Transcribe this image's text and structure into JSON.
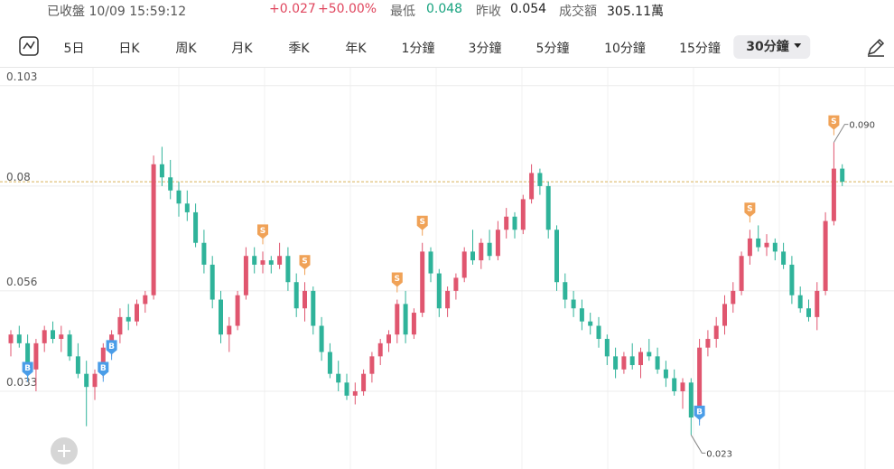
{
  "header": {
    "status": "已收盤 10/09 15:59:12",
    "change": "+0.027",
    "change_pct": "+50.00%",
    "stats": [
      {
        "label": "最低",
        "value": "0.048"
      },
      {
        "label": "昨收",
        "value": "0.054"
      },
      {
        "label": "成交額",
        "value": "305.11萬"
      }
    ]
  },
  "toolbar": {
    "items": [
      "5日",
      "日K",
      "周K",
      "月K",
      "季K",
      "年K",
      "1分鐘",
      "3分鐘",
      "5分鐘",
      "10分鐘",
      "15分鐘",
      "30分鐘"
    ],
    "selected": 11
  },
  "chart_data": {
    "type": "candlestick",
    "up_color": "#e0566f",
    "down_color": "#2fb39a",
    "ylim": [
      0.0152,
      0.1071
    ],
    "yticks": [
      0.033,
      0.056,
      0.08,
      0.103
    ],
    "grid": true,
    "ref_line": 0.081,
    "open": [
      0.044,
      0.046,
      0.044,
      0.038,
      0.044,
      0.047,
      0.045,
      0.046,
      0.041,
      0.037,
      0.034,
      0.037,
      0.043,
      0.046,
      0.05,
      0.049,
      0.053,
      0.055,
      0.085,
      0.082,
      0.079,
      0.076,
      0.074,
      0.067,
      0.062,
      0.054,
      0.046,
      0.048,
      0.055,
      0.064,
      0.062,
      0.063,
      0.062,
      0.064,
      0.058,
      0.052,
      0.056,
      0.048,
      0.042,
      0.037,
      0.035,
      0.032,
      0.033,
      0.037,
      0.041,
      0.044,
      0.046,
      0.053,
      0.046,
      0.051,
      0.065,
      0.06,
      0.052,
      0.056,
      0.059,
      0.065,
      0.063,
      0.067,
      0.064,
      0.07,
      0.073,
      0.07,
      0.077,
      0.083,
      0.08,
      0.07,
      0.058,
      0.054,
      0.052,
      0.049,
      0.048,
      0.045,
      0.041,
      0.038,
      0.041,
      0.039,
      0.042,
      0.041,
      0.038,
      0.036,
      0.033,
      0.035,
      0.027,
      0.043,
      0.045,
      0.048,
      0.053,
      0.056,
      0.064,
      0.068,
      0.066,
      0.067,
      0.065,
      0.062,
      0.055,
      0.052,
      0.05,
      0.056,
      0.072,
      0.084
    ],
    "high": [
      0.047,
      0.048,
      0.046,
      0.045,
      0.048,
      0.049,
      0.048,
      0.047,
      0.044,
      0.04,
      0.038,
      0.044,
      0.047,
      0.052,
      0.053,
      0.054,
      0.056,
      0.087,
      0.089,
      0.086,
      0.081,
      0.079,
      0.076,
      0.07,
      0.064,
      0.056,
      0.05,
      0.056,
      0.066,
      0.066,
      0.065,
      0.064,
      0.067,
      0.066,
      0.06,
      0.058,
      0.057,
      0.05,
      0.044,
      0.04,
      0.037,
      0.035,
      0.038,
      0.042,
      0.045,
      0.047,
      0.054,
      0.056,
      0.052,
      0.067,
      0.066,
      0.061,
      0.057,
      0.06,
      0.066,
      0.07,
      0.068,
      0.07,
      0.072,
      0.075,
      0.074,
      0.078,
      0.085,
      0.084,
      0.081,
      0.071,
      0.06,
      0.056,
      0.054,
      0.051,
      0.05,
      0.046,
      0.043,
      0.042,
      0.044,
      0.043,
      0.045,
      0.043,
      0.04,
      0.038,
      0.036,
      0.036,
      0.045,
      0.047,
      0.05,
      0.055,
      0.058,
      0.065,
      0.07,
      0.071,
      0.069,
      0.068,
      0.067,
      0.064,
      0.057,
      0.054,
      0.058,
      0.074,
      0.09,
      0.085
    ],
    "low": [
      0.041,
      0.043,
      0.036,
      0.033,
      0.042,
      0.044,
      0.042,
      0.04,
      0.036,
      0.025,
      0.031,
      0.036,
      0.041,
      0.044,
      0.047,
      0.048,
      0.051,
      0.054,
      0.08,
      0.077,
      0.073,
      0.072,
      0.066,
      0.06,
      0.052,
      0.044,
      0.042,
      0.047,
      0.054,
      0.06,
      0.06,
      0.06,
      0.061,
      0.056,
      0.05,
      0.049,
      0.046,
      0.04,
      0.036,
      0.033,
      0.031,
      0.03,
      0.032,
      0.035,
      0.039,
      0.042,
      0.044,
      0.044,
      0.045,
      0.05,
      0.058,
      0.05,
      0.05,
      0.054,
      0.058,
      0.062,
      0.061,
      0.063,
      0.063,
      0.068,
      0.068,
      0.069,
      0.076,
      0.078,
      0.068,
      0.056,
      0.052,
      0.05,
      0.047,
      0.046,
      0.043,
      0.039,
      0.036,
      0.037,
      0.038,
      0.036,
      0.04,
      0.037,
      0.034,
      0.032,
      0.029,
      0.023,
      0.026,
      0.041,
      0.043,
      0.046,
      0.051,
      0.055,
      0.062,
      0.065,
      0.064,
      0.063,
      0.061,
      0.053,
      0.051,
      0.049,
      0.047,
      0.055,
      0.071,
      0.08
    ],
    "close": [
      0.046,
      0.044,
      0.038,
      0.044,
      0.047,
      0.045,
      0.046,
      0.041,
      0.037,
      0.034,
      0.037,
      0.043,
      0.046,
      0.05,
      0.049,
      0.053,
      0.055,
      0.085,
      0.082,
      0.079,
      0.076,
      0.074,
      0.067,
      0.062,
      0.054,
      0.046,
      0.048,
      0.055,
      0.064,
      0.062,
      0.063,
      0.062,
      0.064,
      0.058,
      0.052,
      0.056,
      0.048,
      0.042,
      0.037,
      0.035,
      0.032,
      0.033,
      0.037,
      0.041,
      0.044,
      0.046,
      0.053,
      0.046,
      0.051,
      0.065,
      0.06,
      0.052,
      0.056,
      0.059,
      0.065,
      0.063,
      0.067,
      0.064,
      0.07,
      0.073,
      0.07,
      0.077,
      0.083,
      0.08,
      0.07,
      0.058,
      0.054,
      0.052,
      0.049,
      0.048,
      0.045,
      0.041,
      0.038,
      0.041,
      0.039,
      0.042,
      0.041,
      0.038,
      0.036,
      0.033,
      0.035,
      0.027,
      0.043,
      0.045,
      0.048,
      0.053,
      0.056,
      0.064,
      0.068,
      0.066,
      0.067,
      0.065,
      0.062,
      0.055,
      0.052,
      0.05,
      0.056,
      0.072,
      0.084,
      0.081
    ],
    "signals": [
      {
        "index": 2,
        "label": "B"
      },
      {
        "index": 11,
        "label": "B"
      },
      {
        "index": 12,
        "label": "B"
      },
      {
        "index": 30,
        "label": "S"
      },
      {
        "index": 35,
        "label": "S"
      },
      {
        "index": 46,
        "label": "S"
      },
      {
        "index": 49,
        "label": "S"
      },
      {
        "index": 82,
        "label": "B"
      },
      {
        "index": 88,
        "label": "S"
      },
      {
        "index": 98,
        "label": "S"
      }
    ],
    "annotations": [
      {
        "index": 98,
        "field": "high",
        "text": "0.090"
      },
      {
        "index": 81,
        "field": "low",
        "text": "0.023"
      }
    ]
  }
}
